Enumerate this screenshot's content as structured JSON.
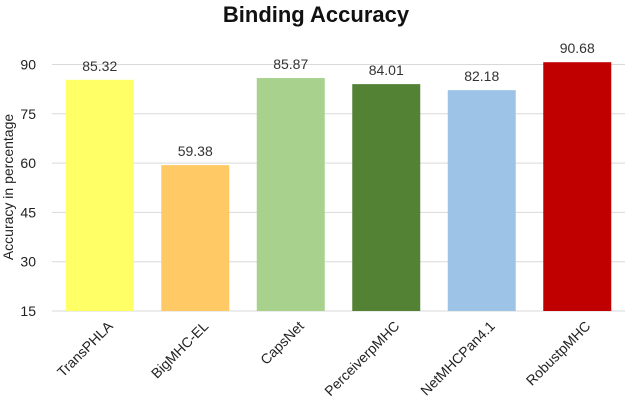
{
  "chart_data": {
    "type": "bar",
    "title": "Binding Accuracy",
    "xlabel": "",
    "ylabel": "Accuracy in percentage",
    "categories": [
      "TransPHLA",
      "BigMHC-EL",
      "CapsNet",
      "PerceiverpMHC",
      "NetMHCPan4.1",
      "RobustpMHC"
    ],
    "values": [
      85.32,
      59.38,
      85.87,
      84.01,
      82.18,
      90.68
    ],
    "value_labels": [
      "85.32",
      "59.38",
      "85.87",
      "84.01",
      "82.18",
      "90.68"
    ],
    "colors": [
      "#FFFF66",
      "#FFC966",
      "#A9D18E",
      "#548235",
      "#9DC3E6",
      "#C00000"
    ],
    "ylim": [
      15,
      95
    ],
    "yticks": [
      15,
      30,
      45,
      60,
      75,
      90
    ],
    "ytick_labels": [
      "15",
      "30",
      "45",
      "60",
      "75",
      "90"
    ],
    "grid": true,
    "legend": "none"
  }
}
